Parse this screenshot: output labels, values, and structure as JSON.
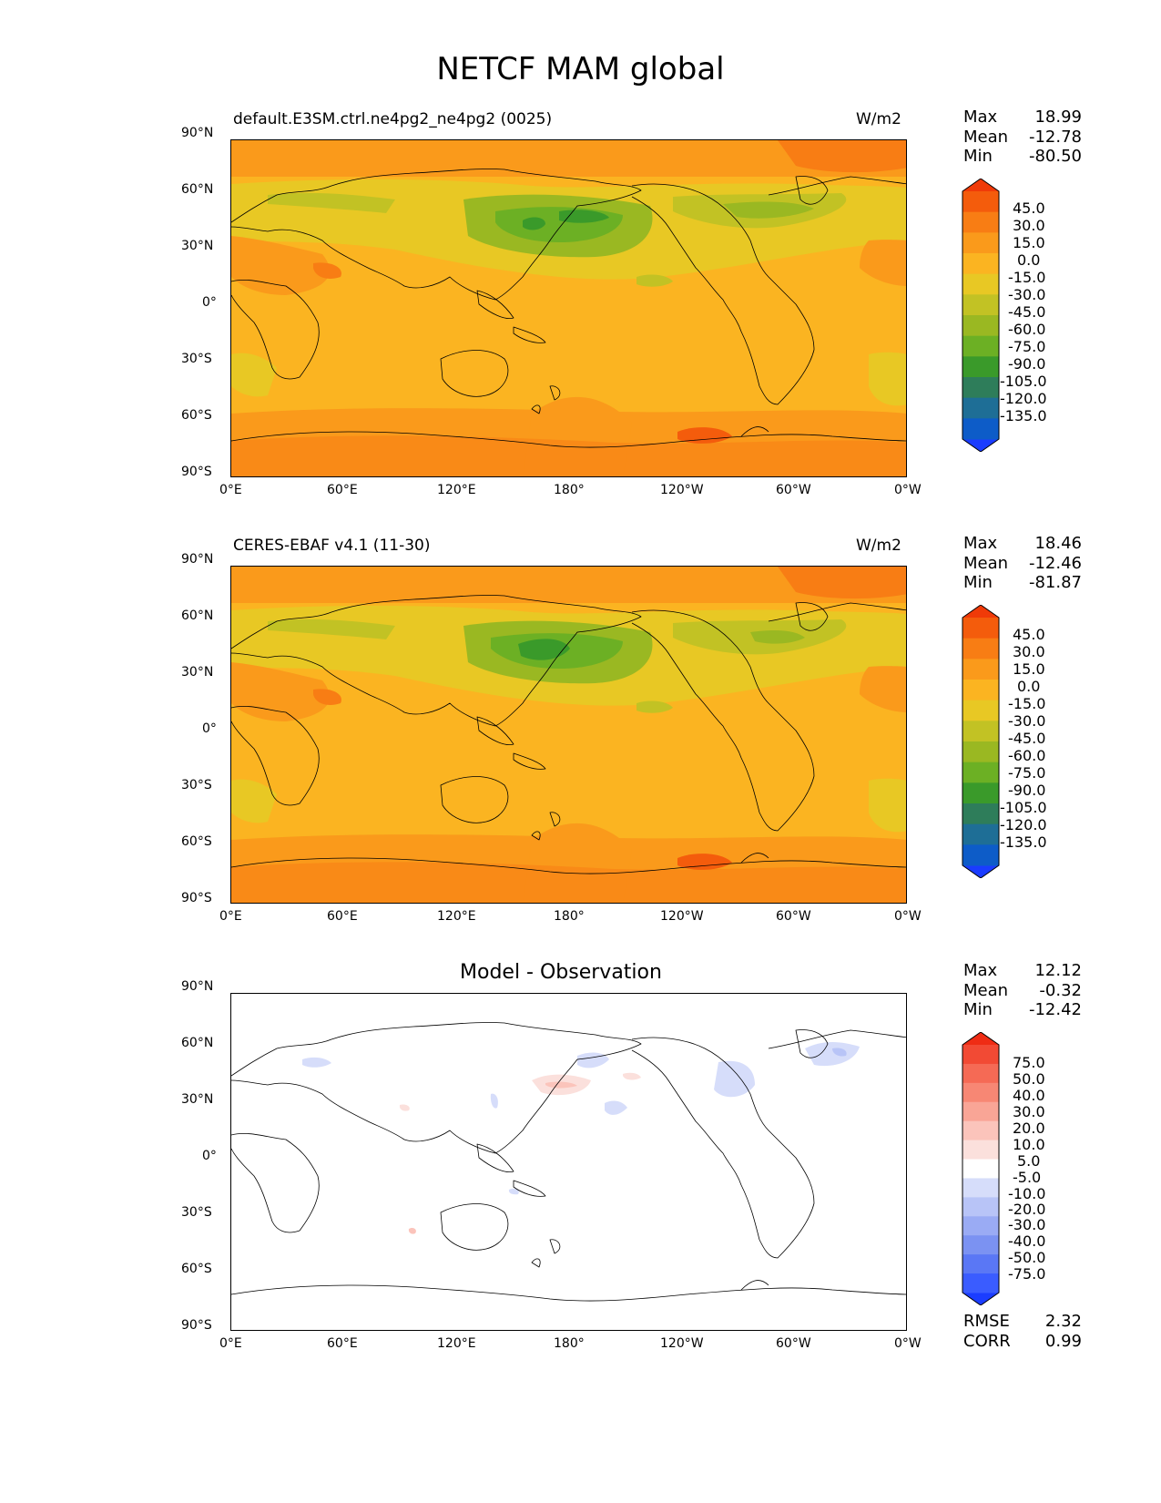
{
  "figure": {
    "title": "NETCF MAM global"
  },
  "axes": {
    "lat_ticks": [
      "90°N",
      "60°N",
      "30°N",
      "0°",
      "30°S",
      "60°S",
      "90°S"
    ],
    "lon_ticks": [
      "0°E",
      "60°E",
      "120°E",
      "180°",
      "120°W",
      "60°W",
      "0°W"
    ]
  },
  "panels": [
    {
      "title": "default.E3SM.ctrl.ne4pg2_ne4pg2 (0025)",
      "units": "W/m2",
      "stats": {
        "max_label": "Max",
        "max": "18.99",
        "mean_label": "Mean",
        "mean": "-12.78",
        "min_label": "Min",
        "min": "-80.50"
      },
      "colorbar": {
        "labels": [
          "45.0",
          "30.0",
          "15.0",
          "0.0",
          "-15.0",
          "-30.0",
          "-45.0",
          "-60.0",
          "-75.0",
          "-90.0",
          "-105.0",
          "-120.0",
          "-135.0"
        ],
        "colors": [
          "#1a3cff",
          "#0d5cc8",
          "#1e6e96",
          "#2e7d5a",
          "#3a9a2a",
          "#6cb024",
          "#9ab822",
          "#c2c224",
          "#e8c824",
          "#fbb421",
          "#fa9a1b",
          "#f87d14",
          "#f45c0c",
          "#f03a08"
        ]
      }
    },
    {
      "title": "CERES-EBAF v4.1 (11-30)",
      "units": "W/m2",
      "stats": {
        "max_label": "Max",
        "max": "18.46",
        "mean_label": "Mean",
        "mean": "-12.46",
        "min_label": "Min",
        "min": "-81.87"
      },
      "colorbar": {
        "labels": [
          "45.0",
          "30.0",
          "15.0",
          "0.0",
          "-15.0",
          "-30.0",
          "-45.0",
          "-60.0",
          "-75.0",
          "-90.0",
          "-105.0",
          "-120.0",
          "-135.0"
        ],
        "colors": [
          "#1a3cff",
          "#0d5cc8",
          "#1e6e96",
          "#2e7d5a",
          "#3a9a2a",
          "#6cb024",
          "#9ab822",
          "#c2c224",
          "#e8c824",
          "#fbb421",
          "#fa9a1b",
          "#f87d14",
          "#f45c0c",
          "#f03a08"
        ]
      }
    },
    {
      "title": "Model - Observation",
      "units": "",
      "stats": {
        "max_label": "Max",
        "max": "12.12",
        "mean_label": "Mean",
        "mean": "-0.32",
        "min_label": "Min",
        "min": "-12.42"
      },
      "colorbar": {
        "labels": [
          "75.0",
          "50.0",
          "40.0",
          "30.0",
          "20.0",
          "10.0",
          "5.0",
          "-5.0",
          "-10.0",
          "-20.0",
          "-30.0",
          "-40.0",
          "-50.0",
          "-75.0"
        ],
        "colors": [
          "#1b3dff",
          "#3a5cff",
          "#5a77f5",
          "#7b92f2",
          "#9aabf4",
          "#b8c4f7",
          "#d6ddfa",
          "#ffffff",
          "#fbe0dc",
          "#fbc4bb",
          "#f9a596",
          "#f78774",
          "#f56a55",
          "#f24a34",
          "#ef2c14"
        ]
      },
      "footer": {
        "rmse_label": "RMSE",
        "rmse": "2.32",
        "corr_label": "CORR",
        "corr": "0.99"
      }
    }
  ]
}
